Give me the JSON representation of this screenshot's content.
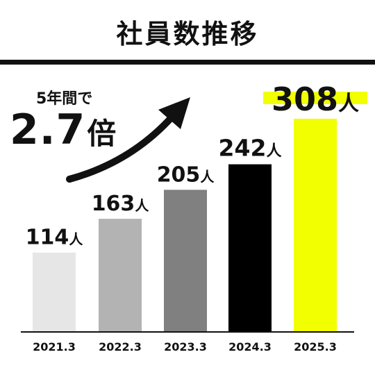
{
  "title": "社員数推移",
  "growth": {
    "caption": "5年間で",
    "value": "2.7",
    "unit": "倍"
  },
  "colors": {
    "bars": [
      "#e6e6e6",
      "#b3b3b3",
      "#808080",
      "#000000",
      "#f2ff00"
    ],
    "highlight": "#f2ff00",
    "text": "#111111"
  },
  "chart_data": {
    "type": "bar",
    "categories": [
      "2021.3",
      "2022.3",
      "2023.3",
      "2024.3",
      "2025.3"
    ],
    "values": [
      114,
      163,
      205,
      242,
      308
    ],
    "unit": "人",
    "title": "社員数推移",
    "xlabel": "",
    "ylabel": "",
    "ylim": [
      0,
      308
    ],
    "grid": false
  }
}
